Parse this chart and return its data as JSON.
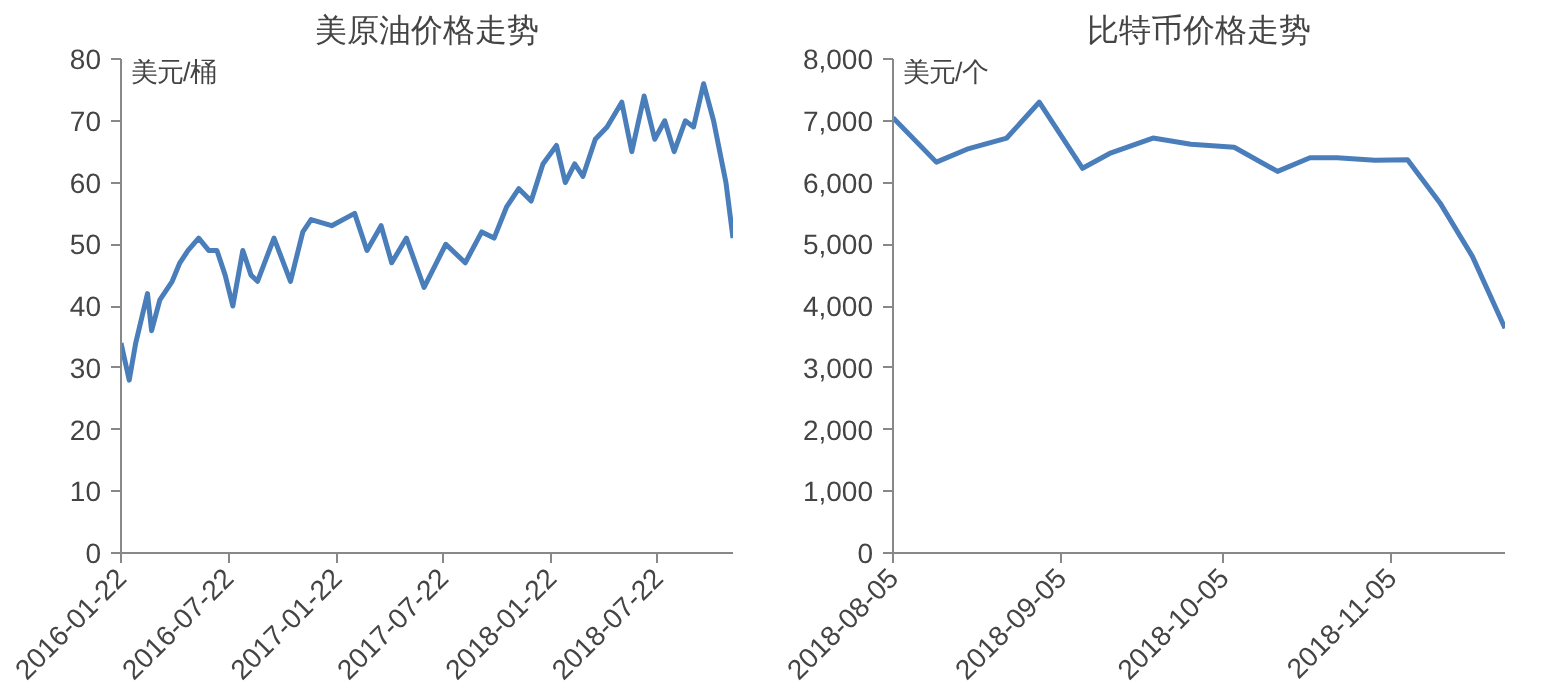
{
  "chart_data": [
    {
      "type": "line",
      "title": "美原油价格走势",
      "ylabel": "美元/桶",
      "grid": false,
      "marker": "none",
      "line_style": "solid",
      "xlim": [
        "2016-01-22",
        "2018-11-27"
      ],
      "xticks": [
        {
          "value": "2016-01-22",
          "label": "2016-01-22"
        },
        {
          "value": "2016-07-22",
          "label": "2016-07-22"
        },
        {
          "value": "2017-01-22",
          "label": "2017-01-22"
        },
        {
          "value": "2017-07-22",
          "label": "2017-07-22"
        },
        {
          "value": "2018-01-22",
          "label": "2018-01-22"
        },
        {
          "value": "2018-07-22",
          "label": "2018-07-22"
        }
      ],
      "ylim": [
        0,
        80
      ],
      "yticks": [
        0,
        10,
        20,
        30,
        40,
        50,
        60,
        70,
        80
      ],
      "x": [
        "2016-01-22",
        "2016-02-05",
        "2016-02-16",
        "2016-03-07",
        "2016-03-14",
        "2016-03-28",
        "2016-04-18",
        "2016-05-01",
        "2016-05-15",
        "2016-06-02",
        "2016-06-19",
        "2016-07-03",
        "2016-07-17",
        "2016-07-30",
        "2016-08-16",
        "2016-08-30",
        "2016-09-10",
        "2016-10-08",
        "2016-11-05",
        "2016-11-26",
        "2016-12-10",
        "2017-01-14",
        "2017-02-22",
        "2017-03-15",
        "2017-04-08",
        "2017-04-26",
        "2017-05-21",
        "2017-06-20",
        "2017-07-11",
        "2017-07-27",
        "2017-08-29",
        "2017-09-26",
        "2017-10-17",
        "2017-11-07",
        "2017-11-28",
        "2017-12-19",
        "2018-01-08",
        "2018-01-31",
        "2018-02-15",
        "2018-03-03",
        "2018-03-17",
        "2018-04-07",
        "2018-04-27",
        "2018-05-22",
        "2018-06-08",
        "2018-06-29",
        "2018-07-17",
        "2018-08-03",
        "2018-08-19",
        "2018-09-07",
        "2018-09-21",
        "2018-10-08",
        "2018-10-25",
        "2018-11-15",
        "2018-11-27"
      ],
      "series": [
        {
          "color": "#4a7ebb",
          "values": [
            34,
            28,
            34,
            42,
            36,
            41,
            44,
            47,
            49,
            51,
            49,
            49,
            45,
            40,
            49,
            45,
            44,
            51,
            44,
            52,
            54,
            53,
            55,
            49,
            53,
            47,
            51,
            43,
            47,
            50,
            47,
            52,
            51,
            56,
            59,
            57,
            63,
            66,
            60,
            63,
            61,
            67,
            69,
            73,
            65,
            74,
            67,
            70,
            65,
            70,
            69,
            76,
            70,
            60,
            51
          ]
        }
      ]
    },
    {
      "type": "line",
      "title": "比特币价格走势",
      "ylabel": "美元/个",
      "grid": false,
      "marker": "none",
      "line_style": "solid",
      "xlim": [
        "2018-08-05",
        "2018-11-26"
      ],
      "xticks": [
        {
          "value": "2018-08-05",
          "label": "2018-08-05"
        },
        {
          "value": "2018-09-05",
          "label": "2018-09-05"
        },
        {
          "value": "2018-10-05",
          "label": "2018-10-05"
        },
        {
          "value": "2018-11-05",
          "label": "2018-11-05"
        }
      ],
      "ylim": [
        0,
        8000
      ],
      "yticks": [
        {
          "value": 0,
          "label": "0"
        },
        {
          "value": 1000,
          "label": "1,000"
        },
        {
          "value": 2000,
          "label": "2,000"
        },
        {
          "value": 3000,
          "label": "3,000"
        },
        {
          "value": 4000,
          "label": "4,000"
        },
        {
          "value": 5000,
          "label": "5,000"
        },
        {
          "value": 6000,
          "label": "6,000"
        },
        {
          "value": 7000,
          "label": "7,000"
        },
        {
          "value": 8000,
          "label": "8,000"
        }
      ],
      "x": [
        "2018-08-05",
        "2018-08-13",
        "2018-08-19",
        "2018-08-26",
        "2018-09-01",
        "2018-09-09",
        "2018-09-14",
        "2018-09-22",
        "2018-09-29",
        "2018-10-07",
        "2018-10-15",
        "2018-10-21",
        "2018-10-26",
        "2018-11-02",
        "2018-11-08",
        "2018-11-14",
        "2018-11-20",
        "2018-11-26"
      ],
      "series": [
        {
          "color": "#4a7ebb",
          "values": [
            7050,
            6330,
            6550,
            6720,
            7300,
            6230,
            6470,
            6720,
            6620,
            6570,
            6180,
            6400,
            6400,
            6360,
            6370,
            5670,
            4800,
            3640
          ]
        }
      ]
    }
  ]
}
